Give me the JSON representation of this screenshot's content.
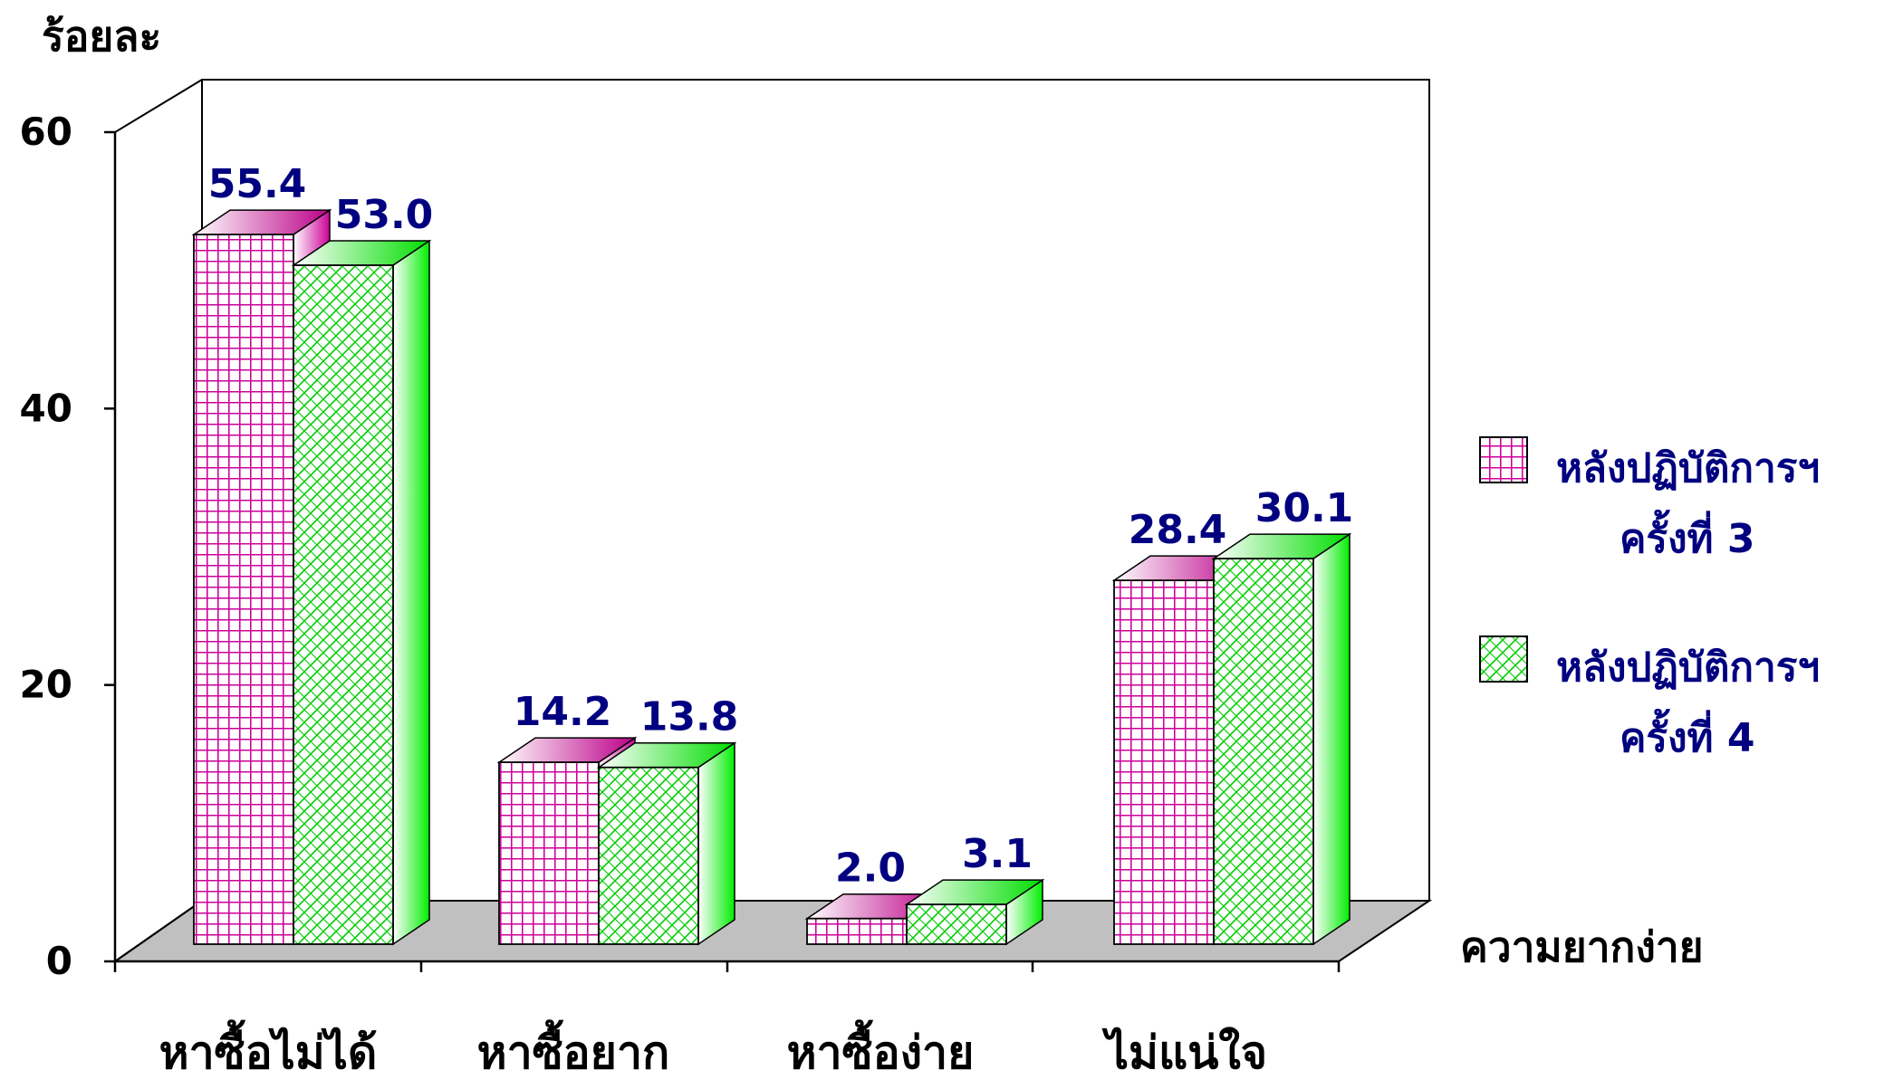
{
  "chart_data": {
    "type": "bar",
    "ylabel": "ร้อยละ",
    "xlabel": "ความยากง่าย",
    "ylim": [
      0,
      60
    ],
    "yticks": [
      "0",
      "20",
      "40",
      "60"
    ],
    "categories": [
      "หาซื้อไม่ได้",
      "หาซื้อยาก",
      "หาซื้อง่าย",
      "ไม่แน่ใจ"
    ],
    "series": [
      {
        "name": "หลังปฏิบัติการฯ ครั้งที่ 3",
        "legend_lines": [
          "หลังปฏิบัติการฯ",
          "ครั้งที่ 3"
        ],
        "pattern": "grid",
        "color": "#CC0099",
        "values": [
          55.4,
          14.2,
          2.0,
          28.4
        ],
        "labels": [
          "55.4",
          "14.2",
          "2.0",
          "28.4"
        ]
      },
      {
        "name": "หลังปฏิบัติการฯ ครั้งที่ 4",
        "legend_lines": [
          "หลังปฏิบัติการฯ",
          "ครั้งที่ 4"
        ],
        "pattern": "diagonal-lattice",
        "color": "#00DD00",
        "values": [
          53.0,
          13.8,
          3.1,
          30.1
        ],
        "labels": [
          "53.0",
          "13.8",
          "3.1",
          "30.1"
        ]
      }
    ],
    "legend_position": "right",
    "grid": false,
    "three_d": true
  }
}
